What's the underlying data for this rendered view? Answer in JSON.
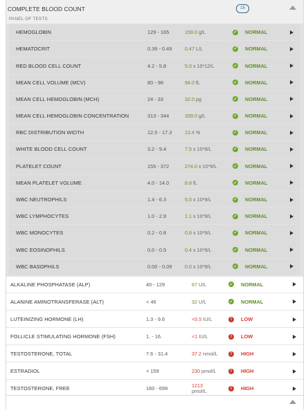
{
  "panel": {
    "title": "COMPLETE BLOOD COUNT",
    "badge": "15",
    "subheader": "PANEL OF TESTS"
  },
  "colors": {
    "normal": "#5f8f2a",
    "abnormal": "#d23b2f",
    "badge": "#2f6a8c"
  },
  "icons": {
    "normal": "check-circle-icon",
    "abnormal": "alert-circle-icon",
    "expand": "chevron-right-icon",
    "collapse": "chevron-up-icon"
  },
  "panel_tests": [
    {
      "name": "HEMOGLOBIN",
      "range": "129 - 165",
      "value": "159.0",
      "unit": "g/L",
      "status": "NORMAL"
    },
    {
      "name": "HEMATOCRIT",
      "range": "0.39 - 0.49",
      "value": "0.47",
      "unit": "L/L",
      "status": "NORMAL"
    },
    {
      "name": "RED BLOOD CELL COUNT",
      "range": "4.2 - 5.8",
      "value": "5.0",
      "unit": "x 10*12/L",
      "status": "NORMAL"
    },
    {
      "name": "MEAN CELL VOLUME (MCV)",
      "range": "80 - 98",
      "value": "94.0",
      "unit": "fL",
      "status": "NORMAL"
    },
    {
      "name": "MEAN CELL HEMOGLOBIN (MCH)",
      "range": "24 - 33",
      "value": "32.0",
      "unit": "pg",
      "status": "NORMAL"
    },
    {
      "name": "MEAN CELL HEMOGLOBIN CONCENTRATION",
      "range": "313 - 344",
      "value": "339.0",
      "unit": "g/L",
      "status": "NORMAL"
    },
    {
      "name": "RBC DISTRIBUTION WIDTH",
      "range": "12.5 - 17.3",
      "value": "13.4",
      "unit": "%",
      "status": "NORMAL"
    },
    {
      "name": "WHITE BLOOD CELL COUNT",
      "range": "3.2 - 9.4",
      "value": "7.5",
      "unit": "x 10*9/L",
      "status": "NORMAL"
    },
    {
      "name": "PLATELET COUNT",
      "range": "155 - 372",
      "value": "274.0",
      "unit": "x 10*9/L",
      "status": "NORMAL"
    },
    {
      "name": "MEAN PLATELET VOLUME",
      "range": "4.0 - 14.0",
      "value": "8.8",
      "unit": "fL",
      "status": "NORMAL"
    },
    {
      "name": "WBC NEUTROPHILS",
      "range": "1.4 - 6.3",
      "value": "5.0",
      "unit": "x 10*9/L",
      "status": "NORMAL"
    },
    {
      "name": "WBC LYMPHOCYTES",
      "range": "1.0 - 2.9",
      "value": "1.1",
      "unit": "x 10*9/L",
      "status": "NORMAL"
    },
    {
      "name": "WBC MONOCYTES",
      "range": "0.2 - 0.8",
      "value": "0.8",
      "unit": "x 10*9/L",
      "status": "NORMAL"
    },
    {
      "name": "WBC EOSINOPHILS",
      "range": "0.0 - 0.5",
      "value": "0.4",
      "unit": "x 10*9/L",
      "status": "NORMAL"
    },
    {
      "name": "WBC BASOPHILS",
      "range": "0.00 - 0.09",
      "value": "0.0",
      "unit": "x 10*9/L",
      "status": "NORMAL"
    }
  ],
  "tests": [
    {
      "name": "ALKALINE PHOSPHATASE (ALP)",
      "range": "40 - 129",
      "value": "67",
      "unit": "U/L",
      "status": "NORMAL"
    },
    {
      "name": "ALANINE AMINOTRANSFERASE (ALT)",
      "range": "< 46",
      "value": "32",
      "unit": "U/L",
      "status": "NORMAL"
    },
    {
      "name": "LUTEINIZING HORMONE (LH)",
      "range": "1.3 - 9.6",
      "value": "<0.5",
      "unit": "IU/L",
      "status": "LOW"
    },
    {
      "name": "FOLLICLE STIMULATING HORMONE (FSH)",
      "range": "1. - 16.",
      "value": "<1",
      "unit": "IU/L",
      "status": "LOW"
    },
    {
      "name": "TESTOSTERONE, TOTAL",
      "range": "7.6 - 31.4",
      "value": "37.2",
      "unit": "nmol/L",
      "status": "HIGH"
    },
    {
      "name": "ESTRADIOL",
      "range": "< 159",
      "value": "230",
      "unit": "pmol/L",
      "status": "HIGH"
    },
    {
      "name": "TESTOSTERONE, FREE",
      "range": "160 - 699",
      "value": "1213",
      "unit": "pmol/L",
      "status": "HIGH"
    }
  ]
}
